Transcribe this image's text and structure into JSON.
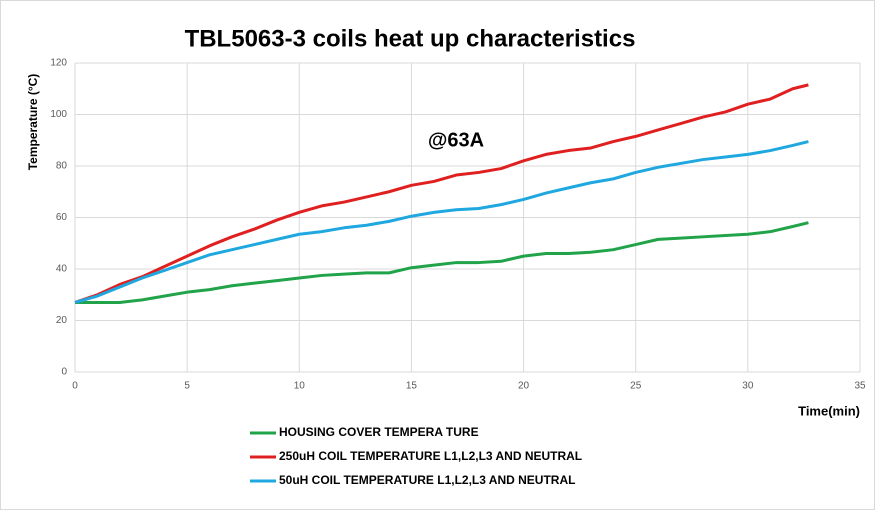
{
  "chart_data": {
    "type": "line",
    "title": "TBL5063-3 coils heat up characteristics",
    "annotation": "@63A",
    "x_label": "Time(min)",
    "y_label": "Temperature (°C)",
    "x": [
      0,
      1,
      2,
      3,
      4,
      5,
      6,
      7,
      8,
      9,
      10,
      11,
      12,
      13,
      14,
      15,
      16,
      17,
      18,
      19,
      20,
      21,
      22,
      23,
      24,
      25,
      26,
      27,
      28,
      29,
      30,
      31,
      32,
      32.7
    ],
    "series": [
      {
        "name": "HOUSING COVER TEMPERA TURE",
        "color": "#21a34a",
        "values": [
          27,
          27,
          27,
          28,
          29.5,
          31,
          32,
          33.5,
          34.5,
          35.5,
          36.5,
          37.5,
          38,
          38.5,
          38.5,
          40.5,
          41.5,
          42.5,
          42.5,
          43,
          45,
          46,
          46,
          46.5,
          47.5,
          49.5,
          51.5,
          52,
          52.5,
          53,
          53.5,
          54.5,
          56.5,
          58
        ]
      },
      {
        "name": "250uH COIL TEMPERATURE L1,L2,L3 AND NEUTRAL",
        "color": "#e02020",
        "values": [
          27,
          30,
          34,
          37,
          41,
          45,
          49,
          52.5,
          55.5,
          59,
          62,
          64.5,
          66,
          68,
          70,
          72.5,
          74,
          76.5,
          77.5,
          79,
          82,
          84.5,
          86,
          87,
          89.5,
          91.5,
          94,
          96.5,
          99,
          101,
          104,
          106,
          110,
          111.5
        ]
      },
      {
        "name": "50uH COIL TEMPERATURE L1,L2,L3 AND NEUTRAL",
        "color": "#1fa8e0",
        "values": [
          27,
          29.5,
          33,
          36.5,
          39.5,
          42.5,
          45.5,
          47.5,
          49.5,
          51.5,
          53.5,
          54.5,
          56,
          57,
          58.5,
          60.5,
          62,
          63,
          63.5,
          65,
          67,
          69.5,
          71.5,
          73.5,
          75,
          77.5,
          79.5,
          81,
          82.5,
          83.5,
          84.5,
          86,
          88,
          89.5
        ]
      }
    ],
    "xlim": [
      0,
      35
    ],
    "xticks": [
      0,
      5,
      10,
      15,
      20,
      25,
      30,
      35
    ],
    "ylim": [
      0,
      120
    ],
    "yticks": [
      0,
      20,
      40,
      60,
      80,
      100,
      120
    ],
    "grid": true,
    "legend": "bottom"
  }
}
